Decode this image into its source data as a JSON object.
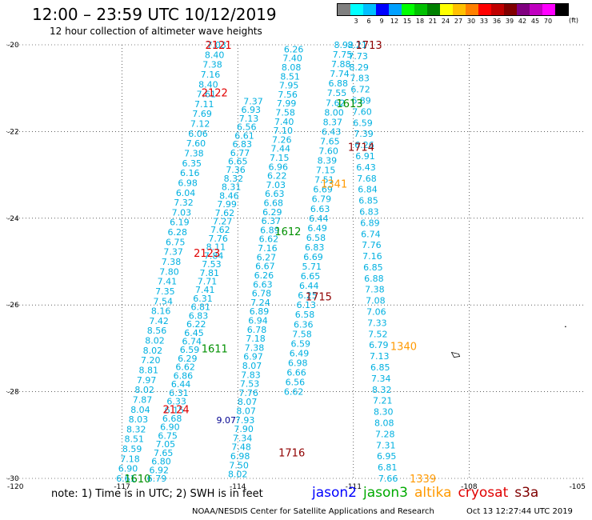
{
  "header": {
    "title": "12:00 – 23:59 UTC 10/12/2019",
    "subtitle": "12 hour collection of altimeter wave heights"
  },
  "legend": {
    "colors": [
      "#808080",
      "#00ffff",
      "#00bfff",
      "#0000ff",
      "#00a0ff",
      "#00ff00",
      "#00c000",
      "#008000",
      "#ffff00",
      "#ffc000",
      "#ff8000",
      "#ff0000",
      "#c00000",
      "#800000",
      "#800080",
      "#c000c0",
      "#ff00ff",
      "#000000"
    ],
    "labels": [
      "",
      "3",
      "6",
      "9",
      "12",
      "15",
      "18",
      "21",
      "24",
      "27",
      "30",
      "33",
      "36",
      "39",
      "42",
      "45",
      "70",
      ""
    ],
    "unit": "(ft)"
  },
  "map_data": {
    "lat_range": [
      -30,
      -20
    ],
    "lon_range": [
      -120,
      -105
    ],
    "x_ticks": [
      -117,
      -114,
      -111,
      -108
    ],
    "y_ticks": [
      -20,
      -22,
      -24,
      -26,
      -28,
      -30
    ],
    "corner_labels": {
      "left_bottom": "-120",
      "right_bottom": "-105"
    },
    "colors": {
      "wave": "#00b0e0",
      "dark": "#000090"
    },
    "tracks": [
      {
        "name": "A",
        "values": [
          "7.03",
          "8.40",
          "7.38",
          "7.16",
          "8.40",
          "7.61",
          "7.11",
          "7.69",
          "7.12",
          "6.06",
          "7.60",
          "7.38",
          "6.35",
          "6.16",
          "6.98",
          "6.04",
          "7.32",
          "7.03",
          "6.19",
          "6.28",
          "6.75",
          "7.37",
          "7.38",
          "7.80",
          "7.41",
          "7.35",
          "7.54",
          "8.16",
          "7.42",
          "8.56",
          "8.02",
          "8.02",
          "7.20",
          "8.81",
          "7.97",
          "8.02",
          "7.87",
          "8.04",
          "8.03",
          "8.32",
          "8.51",
          "8.59",
          "7.18",
          "6.90",
          "6.61"
        ]
      },
      {
        "name": "B",
        "values": [
          "7.37",
          "6.93",
          "7.13",
          "6.56",
          "6.61",
          "6.83",
          "6.77",
          "6.65",
          "7.36",
          "8.32",
          "8.31",
          "8.46",
          "7.99",
          "7.62",
          "7.27",
          "7.62",
          "7.76",
          "8.11",
          "7.84",
          "7.53",
          "7.81",
          "7.71",
          "7.41",
          "6.31",
          "6.81",
          "6.83",
          "6.22",
          "6.45",
          "6.74",
          "6.59",
          "6.29",
          "6.62",
          "6.86",
          "6.44",
          "6.31",
          "6.33",
          "6.15",
          "6.68",
          "6.90",
          "6.75",
          "7.05",
          "7.65",
          "6.80",
          "6.92",
          "6.79"
        ]
      },
      {
        "name": "C",
        "values": [
          "6.26",
          "7.40",
          "8.08",
          "8.51",
          "7.95",
          "7.56",
          "7.99",
          "7.58",
          "7.40",
          "7.10",
          "7.26",
          "7.44",
          "7.15",
          "6.96",
          "6.22",
          "7.03",
          "6.63",
          "6.68",
          "6.29",
          "6.37",
          "6.89",
          "6.62",
          "7.16",
          "6.27",
          "6.67",
          "6.26",
          "6.63",
          "6.78",
          "7.24",
          "6.89",
          "6.94",
          "6.78",
          "7.18",
          "7.38",
          "6.97",
          "8.07",
          "7.83",
          "7.53",
          "7.76",
          "8.07",
          "8.07",
          "7.93",
          "7.90",
          "7.34",
          "7.48",
          "6.98",
          "7.50",
          "8.02"
        ]
      },
      {
        "name": "D",
        "values": [
          "8.92",
          "7.75",
          "7.88",
          "7.74",
          "6.88",
          "7.55",
          "7.62",
          "8.00",
          "8.37",
          "6.43",
          "7.65",
          "7.60",
          "8.39",
          "7.15",
          "7.51",
          "6.69",
          "6.79",
          "6.63",
          "6.44",
          "6.49",
          "6.58",
          "6.83",
          "6.69",
          "5.71",
          "6.65",
          "6.44",
          "6.25",
          "6.13",
          "6.58",
          "6.36",
          "7.58",
          "6.59",
          "6.49",
          "6.98",
          "6.66",
          "6.56",
          "6.62"
        ]
      },
      {
        "name": "E",
        "values": [
          "8.21",
          "7.73",
          "8.29",
          "7.83",
          "6.72",
          "6.89",
          "7.60",
          "6.59",
          "7.39",
          "6.26",
          "6.91",
          "6.43",
          "7.68",
          "6.84",
          "6.85",
          "6.83",
          "6.89",
          "6.74",
          "7.76",
          "7.16",
          "6.85",
          "6.88",
          "7.38",
          "7.08",
          "7.06",
          "7.33",
          "7.52",
          "6.79",
          "7.13",
          "6.85",
          "7.34",
          "8.32",
          "7.21",
          "8.30",
          "8.08",
          "7.28",
          "7.31",
          "6.95",
          "6.81",
          "7.66"
        ]
      }
    ],
    "highlights": [
      {
        "text": "9.07",
        "lon": -114.3,
        "lat": -28.65
      }
    ],
    "time_labels": [
      {
        "text": "2121",
        "lon": -114.5,
        "lat": -20.0,
        "color": "#e00000"
      },
      {
        "text": "2122",
        "lon": -114.6,
        "lat": -21.1,
        "color": "#e00000"
      },
      {
        "text": "2123",
        "lon": -114.8,
        "lat": -24.8,
        "color": "#e00000"
      },
      {
        "text": "2124",
        "lon": -115.6,
        "lat": -28.4,
        "color": "#e00000"
      },
      {
        "text": "1713",
        "lon": -110.6,
        "lat": -20.0,
        "color": "#900000"
      },
      {
        "text": "1714",
        "lon": -110.8,
        "lat": -22.35,
        "color": "#900000"
      },
      {
        "text": "1715",
        "lon": -111.9,
        "lat": -25.8,
        "color": "#900000"
      },
      {
        "text": "1716",
        "lon": -112.6,
        "lat": -29.4,
        "color": "#900000"
      },
      {
        "text": "1613",
        "lon": -111.1,
        "lat": -21.35,
        "color": "#009000"
      },
      {
        "text": "1612",
        "lon": -112.7,
        "lat": -24.3,
        "color": "#009000"
      },
      {
        "text": "1611",
        "lon": -114.6,
        "lat": -27.0,
        "color": "#009000"
      },
      {
        "text": "1610",
        "lon": -116.6,
        "lat": -30.0,
        "color": "#009000"
      },
      {
        "text": "1341",
        "lon": -111.5,
        "lat": -23.2,
        "color": "#ff9900"
      },
      {
        "text": "1340",
        "lon": -109.7,
        "lat": -26.95,
        "color": "#ff9900"
      },
      {
        "text": "1339",
        "lon": -109.2,
        "lat": -30.0,
        "color": "#ff9900"
      }
    ]
  },
  "footer": {
    "note": "note: 1) Time is in UTC; 2) SWH is in feet",
    "satellites": [
      {
        "name": "jason2",
        "color": "#0000ff"
      },
      {
        "name": "jason3",
        "color": "#00aa00"
      },
      {
        "name": "altika",
        "color": "#ff9900"
      },
      {
        "name": "cryosat",
        "color": "#e00000"
      },
      {
        "name": "s3a",
        "color": "#800000"
      }
    ],
    "credit": "NOAA/NESDIS Center for Satellite Applications and Research",
    "timestamp": "Oct 13 12:27:44 UTC 2019"
  }
}
